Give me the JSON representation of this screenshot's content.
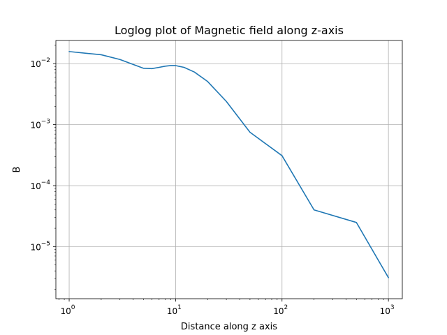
{
  "chart_data": {
    "type": "line",
    "title": "Loglog plot of Magnetic field along z-axis",
    "xlabel": "Distance along z axis",
    "ylabel": "B",
    "xscale": "log",
    "yscale": "log",
    "xlim": [
      0.75,
      1350
    ],
    "ylim": [
      1.4e-06,
      0.024
    ],
    "grid": true,
    "x_ticks": [
      {
        "value": 1,
        "base": "10",
        "exp": "0"
      },
      {
        "value": 10,
        "base": "10",
        "exp": "1"
      },
      {
        "value": 100,
        "base": "10",
        "exp": "2"
      },
      {
        "value": 1000,
        "base": "10",
        "exp": "3"
      }
    ],
    "y_ticks": [
      {
        "value": 1e-05,
        "base": "10",
        "exp": "−5"
      },
      {
        "value": 0.0001,
        "base": "10",
        "exp": "−4"
      },
      {
        "value": 0.001,
        "base": "10",
        "exp": "−3"
      },
      {
        "value": 0.01,
        "base": "10",
        "exp": "−2"
      }
    ],
    "series": [
      {
        "color": "#1f77b4",
        "x": [
          1,
          2,
          3,
          4,
          5,
          6,
          7,
          8,
          9,
          10,
          12,
          15,
          20,
          30,
          50,
          100,
          200,
          500,
          1000
        ],
        "y": [
          0.0158,
          0.014,
          0.0117,
          0.0097,
          0.0084,
          0.0083,
          0.0087,
          0.0091,
          0.0093,
          0.0093,
          0.0087,
          0.0073,
          0.0051,
          0.0024,
          0.00075,
          0.00031,
          4e-05,
          2.49e-05,
          3.1e-06
        ]
      }
    ]
  }
}
